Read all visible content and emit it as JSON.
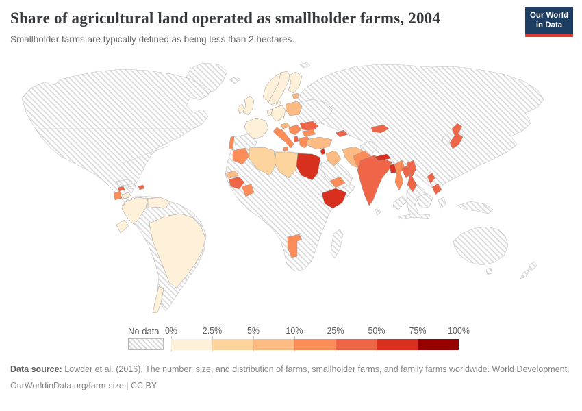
{
  "header": {
    "title": "Share of agricultural land operated as smallholder farms, 2004",
    "subtitle": "Smallholder farms are typically defined as being less than 2 hectares.",
    "logo": {
      "line1": "Our World",
      "line2": "in Data",
      "bg_color": "#1d3d63",
      "accent_color": "#dc3b2b"
    }
  },
  "legend": {
    "no_data_label": "No data",
    "ticks": [
      "0%",
      "2.5%",
      "5%",
      "10%",
      "25%",
      "50%",
      "75%",
      "100%"
    ]
  },
  "chart_data": {
    "type": "choropleth_map",
    "title": "Share of agricultural land operated as smallholder farms",
    "year": 2004,
    "unit": "%",
    "projection": "world",
    "legend_position": "bottom",
    "no_data_style": "hatched",
    "bins": [
      {
        "range": "0-2.5%",
        "color": "#fef0d9"
      },
      {
        "range": "2.5-5%",
        "color": "#fdd49e"
      },
      {
        "range": "5-10%",
        "color": "#fdbb84"
      },
      {
        "range": "10-25%",
        "color": "#fc8d59"
      },
      {
        "range": "25-50%",
        "color": "#ef6548"
      },
      {
        "range": "50-75%",
        "color": "#d7301f"
      },
      {
        "range": "75-100%",
        "color": "#990000"
      }
    ],
    "countries": {
      "Brazil": "0-2.5%",
      "Colombia": "0-2.5%",
      "Venezuela": "0-2.5%",
      "Ecuador": "0-2.5%",
      "Chile": "0-2.5%",
      "Honduras": "0-2.5%",
      "France": "0-2.5%",
      "United Kingdom": "0-2.5%",
      "Ireland": "0-2.5%",
      "Germany": "0-2.5%",
      "Denmark": "0-2.5%",
      "Netherlands": "0-2.5%",
      "Norway": "0-2.5%",
      "Sweden": "0-2.5%",
      "Finland": "0-2.5%",
      "Algeria": "2.5-5%",
      "Libya": "2.5-5%",
      "Poland": "5-10%",
      "Estonia": "5-10%",
      "Austria": "5-10%",
      "Turkey": "5-10%",
      "Iraq": "5-10%",
      "Iran": "5-10%",
      "Senegal": "5-10%",
      "Portugal": "10-25%",
      "Italy": "10-25%",
      "Greece": "10-25%",
      "Bulgaria": "10-25%",
      "Serbia": "10-25%",
      "Morocco": "10-25%",
      "Cote d'Ivoire": "10-25%",
      "Namibia": "10-25%",
      "Yemen": "10-25%",
      "Pakistan": "10-25%",
      "Myanmar": "10-25%",
      "Guatemala": "10-25%",
      "Panama": "10-25%",
      "Romania": "25-50%",
      "Albania": "25-50%",
      "Guinea": "25-50%",
      "India": "25-50%",
      "Laos": "25-50%",
      "Vietnam": "25-50%",
      "Japan": "25-50%",
      "Philippines": "25-50%",
      "Kyrgyzstan": "25-50%",
      "Azerbaijan": "25-50%",
      "Jamaica": "25-50%",
      "Puerto Rico": "25-50%",
      "Egypt": "50-75%",
      "Ethiopia": "50-75%",
      "Nepal": "50-75%",
      "Bangladesh": "50-75%",
      "Lebanon": "50-75%"
    }
  },
  "footer": {
    "datasource_label": "Data source:",
    "datasource_text": " Lowder et al. (2016). The number, size, and distribution of farms, smallholder farms, and family farms worldwide. World Development.",
    "link_text": "OurWorldinData.org/farm-size | CC BY"
  }
}
